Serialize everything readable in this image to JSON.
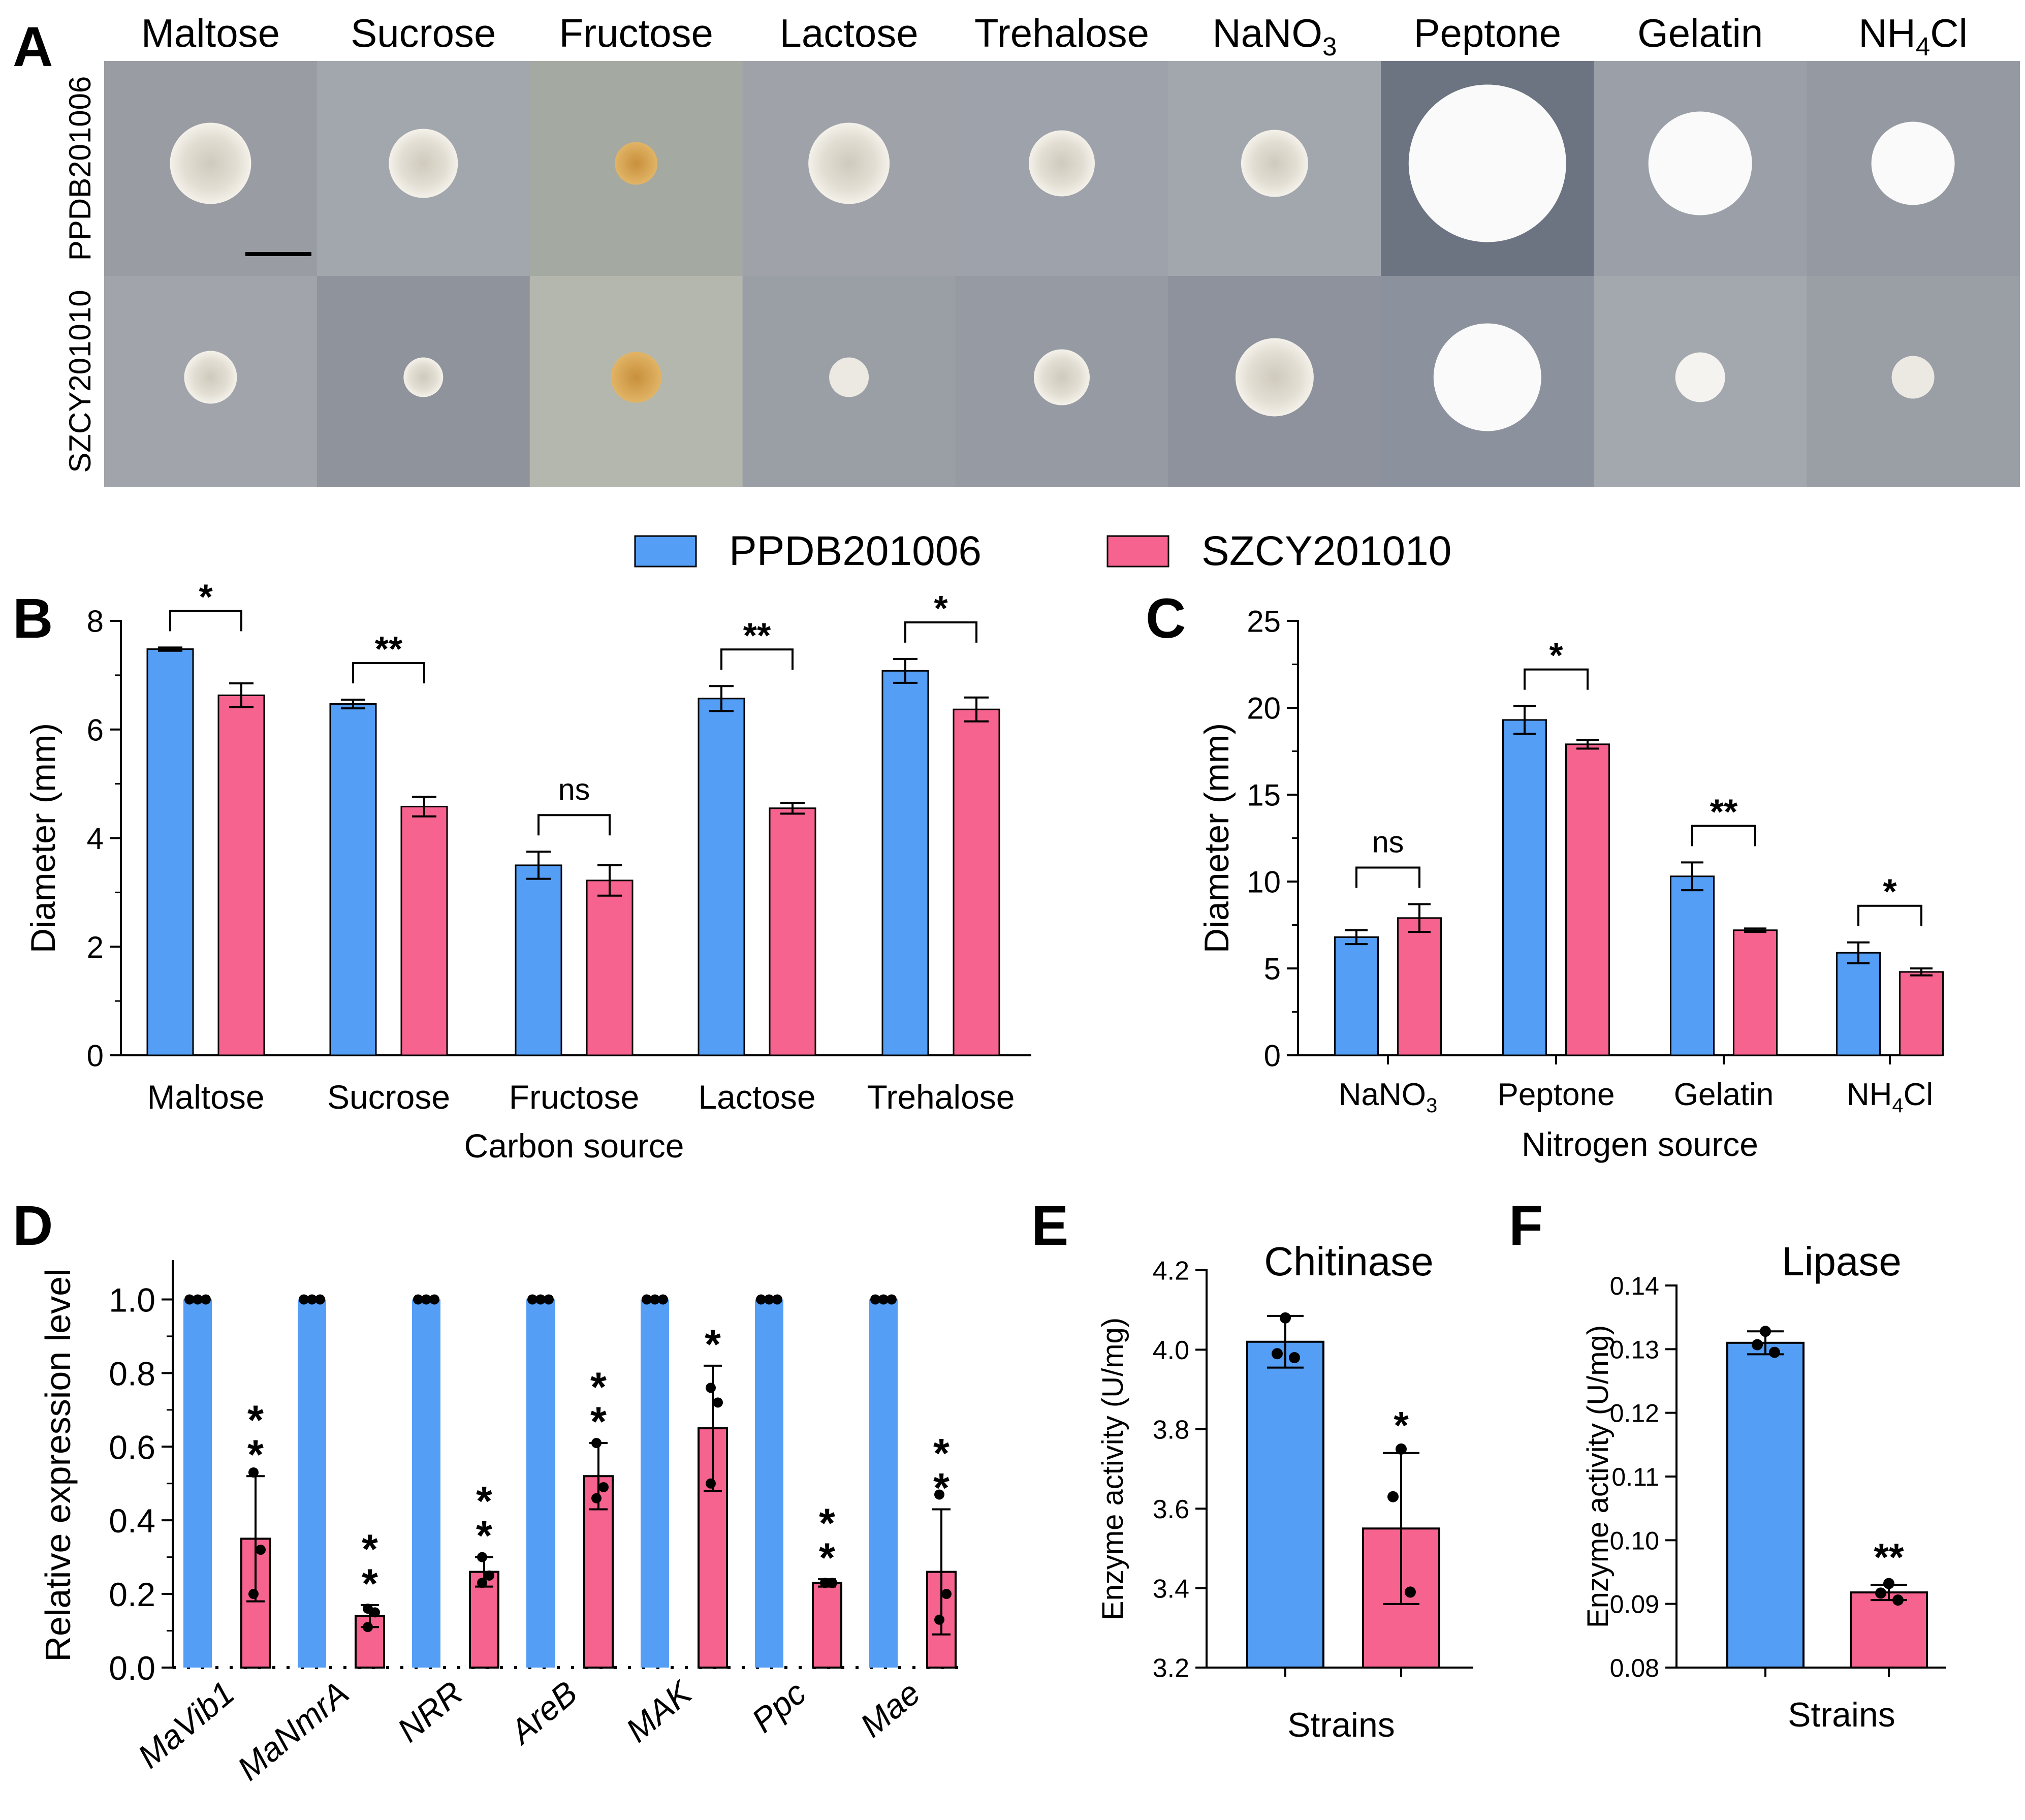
{
  "colors": {
    "strain1": "#559ef6",
    "strain2": "#f6638f",
    "axis": "#000000"
  },
  "legend": [
    "PPDB201006",
    "SZCY201010"
  ],
  "panelA": {
    "label": "A",
    "columns": [
      "Maltose",
      "Sucrose",
      "Fructose",
      "Lactose",
      "Trehalose",
      "NaNO3",
      "Peptone",
      "Gelatin",
      "NH4Cl"
    ],
    "rows": [
      "PPDB201006",
      "SZCY201010"
    ]
  },
  "chart_data": [
    {
      "panel": "B",
      "type": "bar",
      "xlabel": "Carbon source",
      "ylabel": "Diameter (mm)",
      "ylim": [
        0,
        8
      ],
      "yticks": [
        "0",
        "2",
        "4",
        "6",
        "8"
      ],
      "categories": [
        "Maltose",
        "Sucrose",
        "Fructose",
        "Lactose",
        "Trehalose"
      ],
      "series": [
        {
          "name": "PPDB201006",
          "values": [
            7.48,
            6.47,
            3.5,
            6.57,
            7.08
          ],
          "errors": [
            0.03,
            0.08,
            0.25,
            0.23,
            0.22
          ]
        },
        {
          "name": "SZCY201010",
          "values": [
            6.63,
            4.58,
            3.22,
            4.55,
            6.37
          ],
          "errors": [
            0.22,
            0.18,
            0.28,
            0.1,
            0.22
          ]
        }
      ],
      "significance": [
        "*",
        "**",
        "ns",
        "**",
        "*"
      ]
    },
    {
      "panel": "C",
      "type": "bar",
      "xlabel": "Nitrogen source",
      "ylabel": "Diameter (mm)",
      "ylim": [
        0,
        25
      ],
      "yticks": [
        "0",
        "5",
        "10",
        "15",
        "20",
        "25"
      ],
      "categories": [
        "NaNO3",
        "Peptone",
        "Gelatin",
        "NH4Cl"
      ],
      "series": [
        {
          "name": "PPDB201006",
          "values": [
            6.8,
            19.3,
            10.3,
            5.9
          ],
          "errors": [
            0.4,
            0.8,
            0.8,
            0.6
          ]
        },
        {
          "name": "SZCY201010",
          "values": [
            7.9,
            17.9,
            7.2,
            4.8
          ],
          "errors": [
            0.8,
            0.25,
            0.1,
            0.2
          ]
        }
      ],
      "significance": [
        "ns",
        "*",
        "**",
        "*"
      ]
    },
    {
      "panel": "D",
      "type": "bar",
      "xlabel": "",
      "ylabel": "Relative expression level",
      "ylim": [
        0,
        1.1
      ],
      "yticks": [
        "0.0",
        "0.2",
        "0.4",
        "0.6",
        "0.8",
        "1.0"
      ],
      "categories": [
        "MaVib1",
        "MaNmrA",
        "NRR",
        "AreB",
        "MAK",
        "Ppc",
        "Mae"
      ],
      "series": [
        {
          "name": "PPDB201006",
          "values": [
            1.0,
            1.0,
            1.0,
            1.0,
            1.0,
            1.0,
            1.0
          ],
          "points": [
            [
              1,
              1,
              1
            ],
            [
              1,
              1,
              1
            ],
            [
              1,
              1,
              1
            ],
            [
              1,
              1,
              1
            ],
            [
              1,
              1,
              1
            ],
            [
              1,
              1,
              1
            ],
            [
              1,
              1,
              1
            ]
          ]
        },
        {
          "name": "SZCY201010",
          "values": [
            0.35,
            0.14,
            0.26,
            0.52,
            0.65,
            0.23,
            0.26
          ],
          "errors": [
            0.17,
            0.03,
            0.04,
            0.09,
            0.17,
            0.01,
            0.17
          ],
          "points": [
            [
              0.53,
              0.32,
              0.2
            ],
            [
              0.16,
              0.15,
              0.11
            ],
            [
              0.3,
              0.25,
              0.23
            ],
            [
              0.61,
              0.49,
              0.46
            ],
            [
              0.76,
              0.72,
              0.5
            ],
            [
              0.23,
              0.23,
              0.23
            ],
            [
              0.47,
              0.2,
              0.13
            ]
          ]
        }
      ],
      "significance": [
        "**",
        "**",
        "**",
        "**",
        "*",
        "**",
        "**"
      ]
    },
    {
      "panel": "E",
      "type": "bar",
      "title": "Chitinase",
      "xlabel": "Strains",
      "ylabel": "Enzyme activity (U/mg)",
      "ylim": [
        3.2,
        4.2
      ],
      "yticks": [
        "3.2",
        "3.4",
        "3.6",
        "3.8",
        "4.0",
        "4.2"
      ],
      "categories": [
        "PPDB201006",
        "SZCY201010"
      ],
      "values": [
        4.02,
        3.55
      ],
      "errors": [
        0.065,
        0.19
      ],
      "points": [
        [
          4.08,
          3.99,
          3.98
        ],
        [
          3.75,
          3.63,
          3.39
        ]
      ],
      "significance": [
        "",
        "*"
      ]
    },
    {
      "panel": "F",
      "type": "bar",
      "title": "Lipase",
      "xlabel": "Strains",
      "ylabel": "Enzyme activity (U/mg)",
      "ylim": [
        0.08,
        0.14
      ],
      "yticks": [
        "0.08",
        "0.09",
        "0.10",
        "0.11",
        "0.12",
        "0.13",
        "0.14"
      ],
      "categories": [
        "PPDB201006",
        "SZCY201010"
      ],
      "values": [
        0.131,
        0.0918
      ],
      "errors": [
        0.0018,
        0.0012
      ],
      "points": [
        [
          0.1328,
          0.1307,
          0.1295
        ],
        [
          0.0932,
          0.0917,
          0.0906
        ]
      ],
      "significance": [
        "",
        "**"
      ]
    }
  ]
}
